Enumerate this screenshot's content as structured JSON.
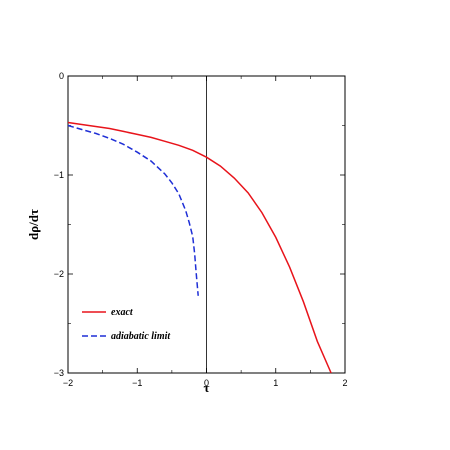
{
  "chart_data": {
    "type": "line",
    "title": "",
    "xlabel": "τ",
    "ylabel": "dρ/dτ",
    "xlim": [
      -2,
      2
    ],
    "ylim": [
      -3,
      0
    ],
    "x_ticks": [
      "−2",
      "−1",
      "0",
      "1",
      "2"
    ],
    "y_ticks": [
      "0",
      "−1",
      "−2",
      "−3"
    ],
    "grid": false,
    "reference_line": {
      "x": 0,
      "color": "#000000"
    },
    "legend_position": "bottom-left",
    "series": [
      {
        "name": "exact",
        "color": "#e8141b",
        "dash": "solid",
        "x": [
          -2.0,
          -1.8,
          -1.6,
          -1.4,
          -1.2,
          -1.0,
          -0.8,
          -0.6,
          -0.4,
          -0.2,
          0.0,
          0.2,
          0.4,
          0.6,
          0.8,
          1.0,
          1.2,
          1.4,
          1.6,
          1.8
        ],
        "y": [
          -0.47,
          -0.49,
          -0.51,
          -0.53,
          -0.56,
          -0.59,
          -0.62,
          -0.66,
          -0.7,
          -0.75,
          -0.82,
          -0.91,
          -1.03,
          -1.18,
          -1.38,
          -1.63,
          -1.93,
          -2.28,
          -2.68,
          -3.0
        ]
      },
      {
        "name": "adiabatic limit",
        "color": "#1f2fd6",
        "dash": "dashed",
        "x": [
          -2.0,
          -1.8,
          -1.6,
          -1.4,
          -1.2,
          -1.0,
          -0.8,
          -0.6,
          -0.5,
          -0.4,
          -0.3,
          -0.25,
          -0.2,
          -0.17,
          -0.15,
          -0.12
        ],
        "y": [
          -0.5,
          -0.54,
          -0.58,
          -0.63,
          -0.69,
          -0.77,
          -0.86,
          -0.99,
          -1.08,
          -1.19,
          -1.36,
          -1.48,
          -1.62,
          -1.8,
          -1.98,
          -2.22
        ]
      }
    ]
  }
}
